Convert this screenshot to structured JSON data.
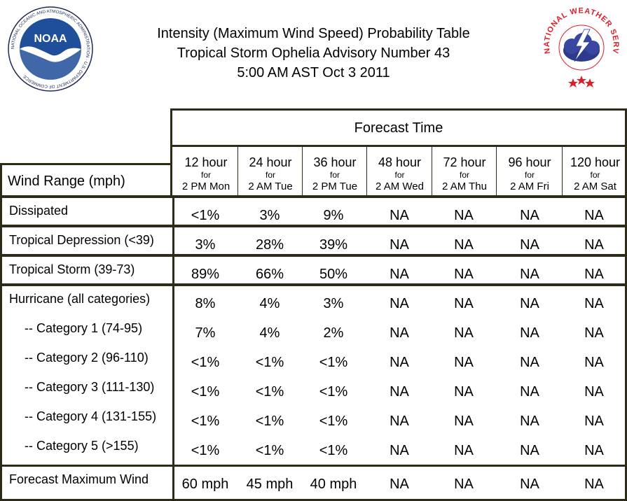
{
  "title": {
    "line1": "Intensity (Maximum Wind Speed) Probability Table",
    "line2": "Tropical Storm Ophelia Advisory Number 43",
    "line3": "5:00 AM AST Oct 3 2011"
  },
  "logos": {
    "noaa_text": "NOAA",
    "noaa_ring": "NATIONAL OCEANIC AND ATMOSPHERIC ADMINISTRATION · U.S. DEPARTMENT OF COMMERCE",
    "nws_ring": "NATIONAL WEATHER SERVICE"
  },
  "table": {
    "forecast_time_label": "Forecast Time",
    "wind_range_label": "Wind Range (mph)",
    "columns": [
      {
        "hours": "12 hour",
        "for": "for",
        "when": "2 PM Mon"
      },
      {
        "hours": "24 hour",
        "for": "for",
        "when": "2 AM Tue"
      },
      {
        "hours": "36 hour",
        "for": "for",
        "when": "2 PM Tue"
      },
      {
        "hours": "48 hour",
        "for": "for",
        "when": "2 AM Wed"
      },
      {
        "hours": "72 hour",
        "for": "for",
        "when": "2 AM Thu"
      },
      {
        "hours": "96 hour",
        "for": "for",
        "when": "2 AM Fri"
      },
      {
        "hours": "120 hour",
        "for": "for",
        "when": "2 AM Sat"
      }
    ],
    "rows": [
      {
        "label": "Dissipated",
        "values": [
          "<1%",
          "3%",
          "9%",
          "NA",
          "NA",
          "NA",
          "NA"
        ]
      },
      {
        "label": "Tropical Depression (<39)",
        "values": [
          "3%",
          "28%",
          "39%",
          "NA",
          "NA",
          "NA",
          "NA"
        ]
      },
      {
        "label": "Tropical Storm (39-73)",
        "values": [
          "89%",
          "66%",
          "50%",
          "NA",
          "NA",
          "NA",
          "NA"
        ]
      },
      {
        "label": "Hurricane (all categories)",
        "values": [
          "8%",
          "4%",
          "3%",
          "NA",
          "NA",
          "NA",
          "NA"
        ]
      },
      {
        "label": "-- Category 1 (74-95)",
        "values": [
          "7%",
          "4%",
          "2%",
          "NA",
          "NA",
          "NA",
          "NA"
        ]
      },
      {
        "label": "-- Category 2 (96-110)",
        "values": [
          "<1%",
          "<1%",
          "<1%",
          "NA",
          "NA",
          "NA",
          "NA"
        ]
      },
      {
        "label": "-- Category 3 (111-130)",
        "values": [
          "<1%",
          "<1%",
          "<1%",
          "NA",
          "NA",
          "NA",
          "NA"
        ]
      },
      {
        "label": "-- Category 4 (131-155)",
        "values": [
          "<1%",
          "<1%",
          "<1%",
          "NA",
          "NA",
          "NA",
          "NA"
        ]
      },
      {
        "label": "-- Category 5 (>155)",
        "values": [
          "<1%",
          "<1%",
          "<1%",
          "NA",
          "NA",
          "NA",
          "NA"
        ]
      },
      {
        "label": "Forecast Maximum Wind",
        "values": [
          "60 mph",
          "45 mph",
          "40 mph",
          "NA",
          "NA",
          "NA",
          "NA"
        ]
      }
    ]
  },
  "colors": {
    "border": "#2d2b17",
    "noaa_blue": "#1f4e9a",
    "nws_red": "#d8202b",
    "nws_cloud": "#2e3a8c"
  }
}
